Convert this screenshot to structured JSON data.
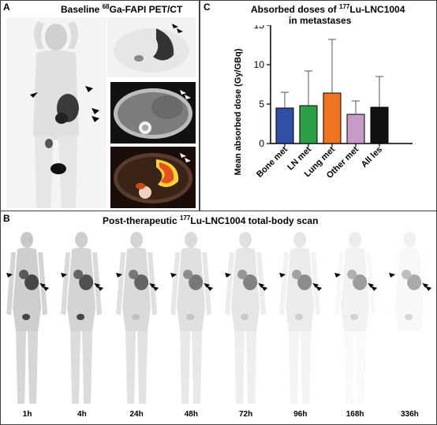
{
  "panel_a": {
    "letter": "A",
    "title_pre": "Baseline ",
    "title_sup": "68",
    "title_post": "Ga-FAPI PET/CT"
  },
  "panel_b": {
    "letter": "B",
    "title_pre": "Post-therapeutic ",
    "title_sup": "177",
    "title_post": "Lu-LNC1004 total-body scan",
    "timepoints": [
      "1h",
      "4h",
      "24h",
      "48h",
      "72h",
      "96h",
      "168h",
      "336h"
    ],
    "liver_uptake_levels": [
      0.55,
      0.5,
      0.4,
      0.3,
      0.25,
      0.2,
      0.12,
      0.05
    ]
  },
  "panel_c": {
    "letter": "C",
    "title_line1_pre": "Absorbed doses of ",
    "title_line1_sup": "177",
    "title_line1_post": "Lu-LNC1004",
    "title_line2": "in metastases"
  },
  "chart_data": {
    "type": "bar",
    "ylabel": "Mean absorbed dose (Gy/GBq)",
    "ylim": [
      0,
      15
    ],
    "yticks": [
      0,
      5,
      10,
      15
    ],
    "categories": [
      "Bone met",
      "LN met",
      "Lung met",
      "Other met",
      "All les"
    ],
    "values": [
      4.5,
      4.8,
      6.4,
      3.7,
      4.6
    ],
    "errors_upper": [
      6.5,
      9.2,
      13.2,
      5.4,
      8.5
    ],
    "colors": [
      "#2f4fa8",
      "#2ba045",
      "#f07320",
      "#c89ac8",
      "#111111"
    ]
  }
}
